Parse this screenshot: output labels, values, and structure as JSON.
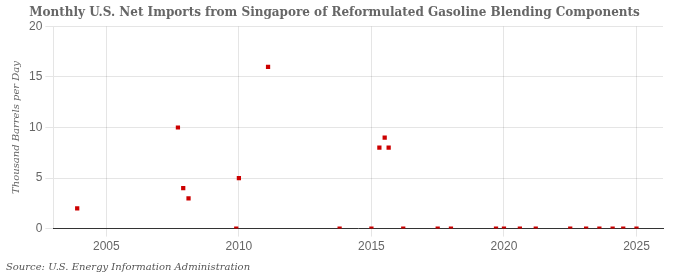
{
  "chart_data": {
    "type": "scatter",
    "title": "Monthly U.S. Net Imports from Singapore of Reformulated Gasoline Blending Components",
    "ylabel": "Thousand Barrels per Day",
    "annotation": "Source: U.S. Energy Information Administration",
    "x": [
      2003.9,
      2007.7,
      2007.9,
      2008.1,
      2009.9,
      2010.0,
      2011.1,
      2013.8,
      2015.0,
      2015.3,
      2015.5,
      2015.65,
      2016.2,
      2017.5,
      2018.0,
      2019.7,
      2020.0,
      2020.6,
      2021.2,
      2022.5,
      2023.1,
      2023.6,
      2024.1,
      2024.5,
      2025.0
    ],
    "values": [
      2,
      10,
      4,
      3,
      0,
      5,
      16,
      0,
      0,
      8,
      9,
      8,
      0,
      0,
      0,
      0,
      0,
      0,
      0,
      0,
      0,
      0,
      0,
      0,
      0
    ],
    "color": "#cc0000",
    "marker": "square",
    "xlim": [
      2003.0,
      2026.0
    ],
    "xticks": [
      2005,
      2010,
      2015,
      2020,
      2025
    ],
    "ylim": [
      0,
      20
    ],
    "yticks": [
      0,
      5,
      10,
      15,
      20
    ],
    "grid": true
  }
}
